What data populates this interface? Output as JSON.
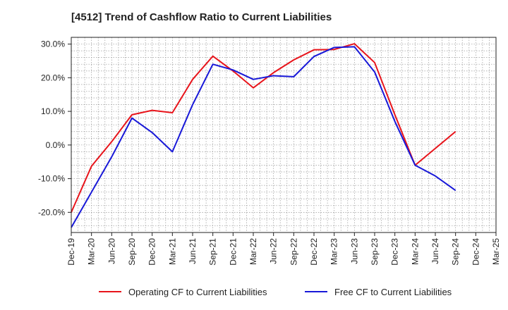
{
  "chart_data": {
    "type": "line",
    "title": "[4512]  Trend of Cashflow Ratio to Current Liabilities",
    "xlabel": "",
    "ylabel": "",
    "categories": [
      "Dec-19",
      "Mar-20",
      "Jun-20",
      "Sep-20",
      "Dec-20",
      "Mar-21",
      "Jun-21",
      "Sep-21",
      "Dec-21",
      "Mar-22",
      "Jun-22",
      "Sep-22",
      "Dec-22",
      "Mar-23",
      "Jun-23",
      "Sep-23",
      "Dec-23",
      "Mar-24",
      "Jun-24",
      "Sep-24",
      "Dec-24",
      "Mar-25"
    ],
    "x_tick_labels": [
      "Dec-19",
      "Mar-20",
      "Jun-20",
      "Sep-20",
      "Dec-20",
      "Mar-21",
      "Jun-21",
      "Sep-21",
      "Dec-21",
      "Mar-22",
      "Jun-22",
      "Sep-22",
      "Dec-22",
      "Mar-23",
      "Jun-23",
      "Sep-23",
      "Dec-23",
      "Mar-24",
      "Jun-24",
      "Sep-24",
      "Dec-24",
      "Mar-25"
    ],
    "y_ticks": [
      30,
      20,
      10,
      0,
      -10,
      -20
    ],
    "y_tick_labels": [
      "30.0%",
      "20.0%",
      "10.0%",
      "0.0%",
      "-10.0%",
      "-20.0%"
    ],
    "ylim": [
      -26,
      32
    ],
    "grid": true,
    "legend_position": "bottom",
    "series": [
      {
        "name": "Operating CF to Current Liabilities",
        "color": "#e8141b",
        "values": [
          -20.0,
          -6.3,
          1.0,
          9.0,
          10.3,
          9.6,
          19.5,
          26.4,
          22.0,
          17.0,
          21.5,
          25.3,
          28.3,
          28.4,
          30.1,
          24.5,
          9.0,
          -6.0,
          -1.0,
          4.0,
          null,
          null
        ]
      },
      {
        "name": "Free CF to Current Liabilities",
        "color": "#1818d8",
        "values": [
          -24.5,
          -14.0,
          -3.5,
          8.0,
          3.7,
          -2.0,
          12.0,
          24.0,
          22.3,
          19.5,
          20.6,
          20.3,
          26.3,
          29.0,
          29.2,
          21.7,
          7.0,
          -6.0,
          -9.2,
          -13.5,
          null,
          null
        ]
      }
    ]
  }
}
